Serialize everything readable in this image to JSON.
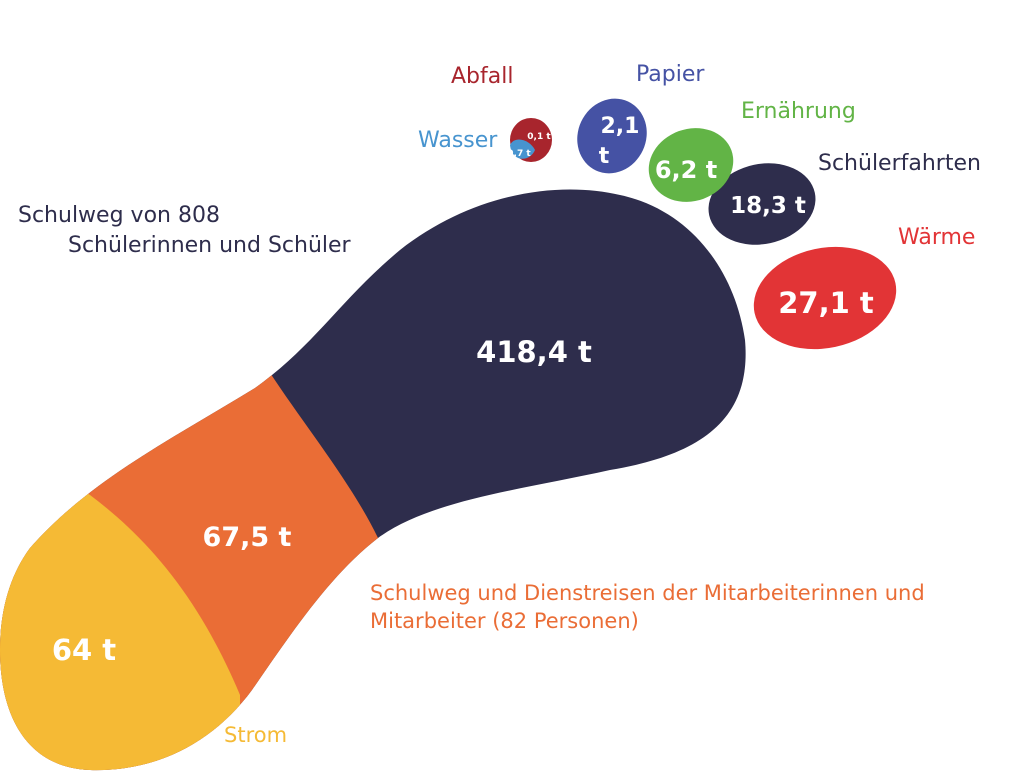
{
  "colors": {
    "navy": "#2e2d4c",
    "orange": "#ea6d36",
    "yellow": "#f5ba35",
    "red": "#e23436",
    "green": "#62b446",
    "blue": "#4552a4",
    "darkred": "#a8252d",
    "lightblue": "#4794cf",
    "white": "#ffffff"
  },
  "segments": {
    "schulweg_schueler": {
      "label_line1": "Schulweg von 808",
      "label_line2": "Schülerinnen und Schüler",
      "value": "418,4 t"
    },
    "schulweg_mitarbeiter": {
      "label_line1": "Schulweg und Dienstreisen der Mitarbeiterinnen und",
      "label_line2": "Mitarbeiter (82 Personen)",
      "value": "67,5 t"
    },
    "strom": {
      "label": "Strom",
      "value": "64 t"
    }
  },
  "toes": {
    "waerme": {
      "label": "Wärme",
      "value": "27,1 t"
    },
    "schuelerfahrten": {
      "label": "Schülerfahrten",
      "value": "18,3 t"
    },
    "ernaehrung": {
      "label": "Ernährung",
      "value": "6,2 t"
    },
    "papier": {
      "label": "Papier",
      "value_line1": "2,1",
      "value_line2": "t"
    },
    "abfall": {
      "label": "Abfall",
      "value": "0,1 t"
    },
    "wasser": {
      "label": "Wasser",
      "value": "0,7 t"
    }
  }
}
